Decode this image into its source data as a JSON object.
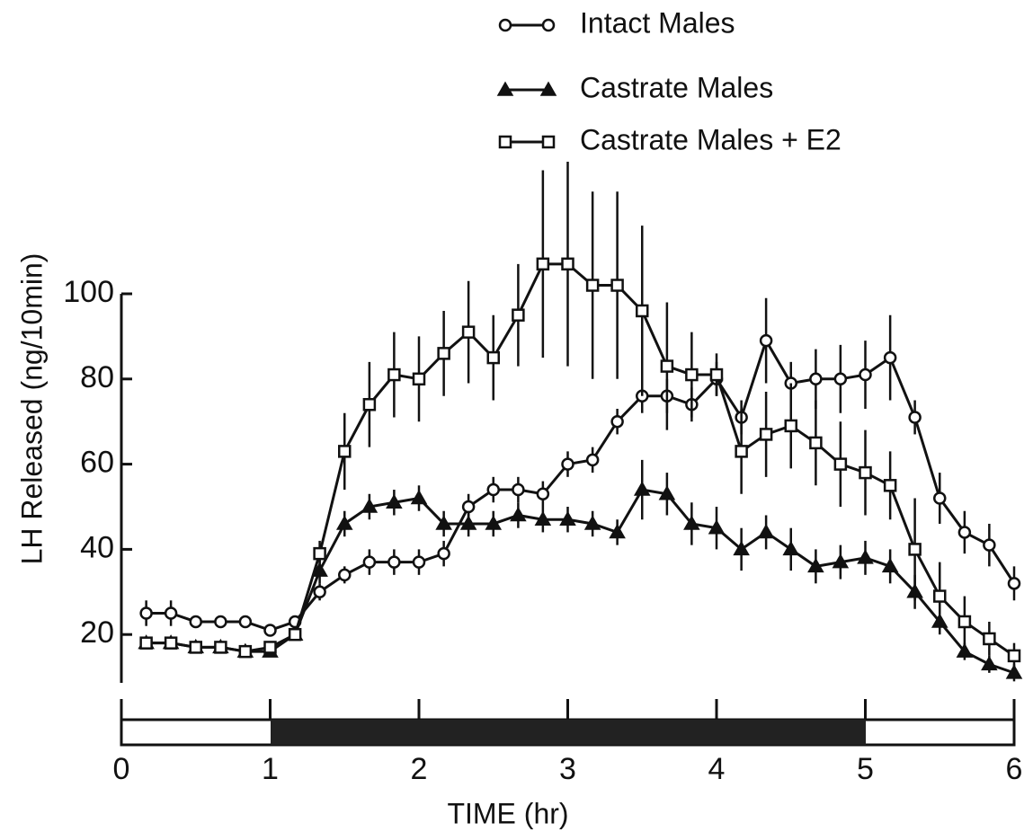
{
  "chart_data": {
    "type": "line",
    "xlabel": "TIME (hr)",
    "ylabel": "LH Released (ng/10min)",
    "x": [
      0.167,
      0.333,
      0.5,
      0.667,
      0.833,
      1,
      1.167,
      1.333,
      1.5,
      1.667,
      1.833,
      2,
      2.167,
      2.333,
      2.5,
      2.667,
      2.833,
      3,
      3.167,
      3.333,
      3.5,
      3.667,
      3.833,
      4,
      4.167,
      4.333,
      4.5,
      4.667,
      4.833,
      5,
      5.167,
      5.333,
      5.5,
      5.667,
      5.833,
      6
    ],
    "series": [
      {
        "name": "Intact Males",
        "marker": "circle",
        "color": "#111111",
        "values": [
          25,
          25,
          23,
          23,
          23,
          21,
          23,
          30,
          34,
          37,
          37,
          37,
          39,
          50,
          54,
          54,
          53,
          60,
          61,
          70,
          76,
          76,
          74,
          80,
          71,
          89,
          79,
          80,
          80,
          81,
          85,
          71,
          52,
          44,
          41,
          32
        ],
        "errors": [
          3,
          3,
          1,
          1,
          1,
          1,
          1,
          2,
          2,
          3,
          3,
          3,
          3,
          3,
          3,
          3,
          3,
          3,
          3,
          3,
          4,
          4,
          4,
          4,
          4,
          10,
          5,
          7,
          8,
          8,
          10,
          4,
          6,
          5,
          5,
          4
        ]
      },
      {
        "name": "Castrate Males",
        "marker": "triangle",
        "color": "#111111",
        "values": [
          18,
          18,
          17,
          17,
          16,
          16,
          20,
          35,
          46,
          50,
          51,
          52,
          46,
          46,
          46,
          48,
          47,
          47,
          46,
          44,
          54,
          53,
          46,
          45,
          40,
          44,
          40,
          36,
          37,
          38,
          36,
          30,
          23,
          16,
          13,
          11
        ],
        "errors": [
          1,
          1,
          1,
          1,
          1,
          1,
          1,
          3,
          3,
          3,
          3,
          3,
          3,
          3,
          3,
          3,
          3,
          3,
          3,
          3,
          7,
          5,
          5,
          5,
          5,
          4,
          5,
          4,
          4,
          4,
          4,
          4,
          3,
          2,
          2,
          2
        ]
      },
      {
        "name": "Castrate Males + E2",
        "marker": "square",
        "color": "#111111",
        "values": [
          18,
          18,
          17,
          17,
          16,
          17,
          20,
          39,
          63,
          74,
          81,
          80,
          86,
          91,
          85,
          95,
          107,
          107,
          102,
          102,
          96,
          83,
          81,
          81,
          63,
          67,
          69,
          65,
          60,
          58,
          55,
          40,
          29,
          23,
          19,
          15
        ],
        "errors": [
          1,
          1,
          1,
          1,
          1,
          1,
          1,
          3,
          9,
          10,
          10,
          10,
          10,
          12,
          10,
          12,
          22,
          24,
          22,
          22,
          20,
          15,
          10,
          5,
          10,
          10,
          10,
          10,
          10,
          10,
          8,
          12,
          8,
          6,
          4,
          3
        ]
      }
    ],
    "xlim": [
      0,
      6
    ],
    "xticks": [
      0,
      1,
      2,
      3,
      4,
      5,
      6
    ],
    "ylim": [
      0,
      100
    ],
    "yticks": [
      20,
      40,
      60,
      80,
      100
    ]
  }
}
